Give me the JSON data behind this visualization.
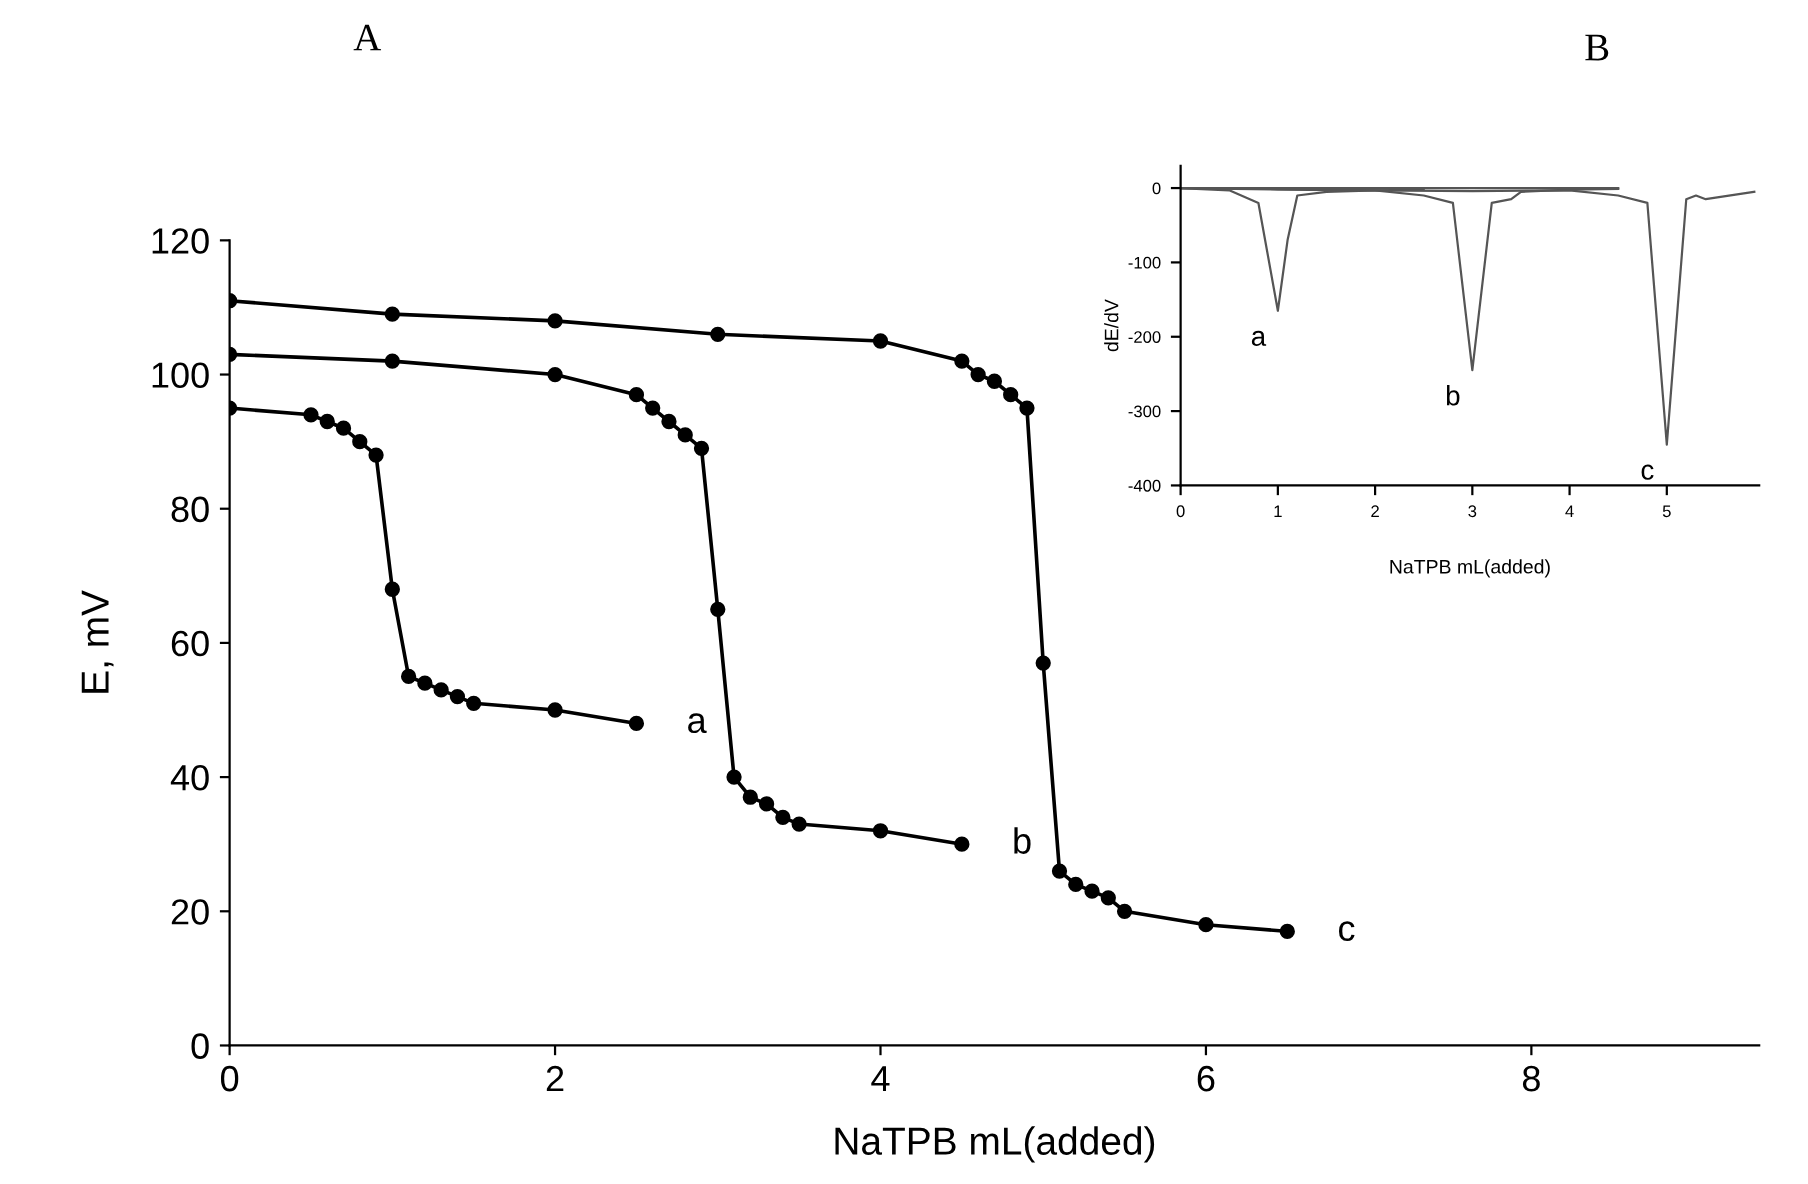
{
  "chart_data": [
    {
      "type": "line",
      "title": "A",
      "xlabel": "NaTPB mL(added)",
      "ylabel": "E, mV",
      "xlim": [
        0,
        9.4
      ],
      "xticks": [
        0,
        2,
        4,
        6,
        8
      ],
      "ylim": [
        0,
        120
      ],
      "yticks": [
        0,
        20,
        40,
        60,
        80,
        100,
        120
      ],
      "marker": "circle",
      "line_style": "solid",
      "grid": false,
      "legend": false,
      "series": [
        {
          "name": "a",
          "color": "#000000",
          "x": [
            0,
            0.5,
            0.6,
            0.7,
            0.8,
            0.9,
            1.0,
            1.1,
            1.2,
            1.3,
            1.4,
            1.5,
            2.0,
            2.5
          ],
          "values": [
            95,
            94,
            93,
            92,
            90,
            88,
            68,
            55,
            54,
            53,
            52,
            51,
            50,
            48
          ]
        },
        {
          "name": "b",
          "color": "#000000",
          "x": [
            0,
            1,
            2,
            2.5,
            2.6,
            2.7,
            2.8,
            2.9,
            3.0,
            3.1,
            3.2,
            3.3,
            3.4,
            3.5,
            4.0,
            4.5
          ],
          "values": [
            103,
            102,
            100,
            97,
            95,
            93,
            91,
            89,
            65,
            40,
            37,
            36,
            34,
            33,
            32,
            30
          ]
        },
        {
          "name": "c",
          "color": "#000000",
          "x": [
            0,
            1,
            2,
            3,
            4,
            4.5,
            4.6,
            4.7,
            4.8,
            4.9,
            5.0,
            5.1,
            5.2,
            5.3,
            5.4,
            5.5,
            6.0,
            6.5
          ],
          "values": [
            111,
            109,
            108,
            106,
            105,
            102,
            100,
            99,
            97,
            95,
            57,
            26,
            24,
            23,
            22,
            20,
            18,
            17
          ]
        }
      ]
    },
    {
      "type": "line",
      "title": "B",
      "xlabel": "NaTPB mL(added)",
      "ylabel": "dE/dV",
      "xlim": [
        0,
        5.95
      ],
      "xticks": [
        0,
        1,
        2,
        3,
        4,
        5
      ],
      "ylim": [
        -400,
        30
      ],
      "yticks": [
        -400,
        -300,
        -200,
        -100,
        0
      ],
      "marker": "none",
      "line_style": "solid",
      "grid": false,
      "legend": false,
      "series": [
        {
          "name": "a",
          "color": "#555555",
          "x": [
            0,
            0.5,
            0.8,
            1.0,
            1.1,
            1.2,
            1.5,
            2.0,
            2.5
          ],
          "values": [
            0,
            -3,
            -20,
            -165,
            -70,
            -10,
            -5,
            -3,
            -2
          ]
        },
        {
          "name": "b",
          "color": "#555555",
          "x": [
            0,
            1,
            2,
            2.5,
            2.8,
            3.0,
            3.2,
            3.4,
            3.5,
            4.0,
            4.5
          ],
          "values": [
            0,
            -1,
            -3,
            -10,
            -20,
            -245,
            -20,
            -15,
            -5,
            -2,
            -1
          ]
        },
        {
          "name": "c",
          "color": "#555555",
          "x": [
            0,
            1,
            2,
            3,
            4,
            4.5,
            4.8,
            5.0,
            5.2,
            5.3,
            5.4,
            5.9
          ],
          "values": [
            0,
            -2,
            -3,
            -4,
            -3,
            -10,
            -20,
            -345,
            -15,
            -10,
            -15,
            -5
          ]
        },
        {
          "color": "#555555",
          "x": [
            0,
            4.5
          ],
          "values": [
            0,
            0
          ]
        }
      ]
    }
  ]
}
